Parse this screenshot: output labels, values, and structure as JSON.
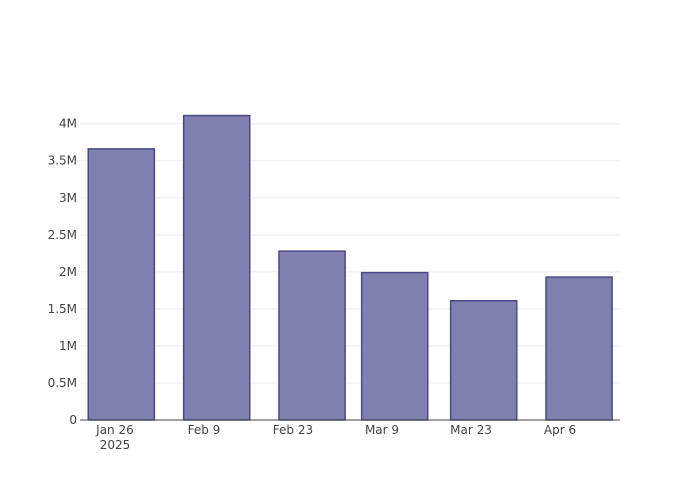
{
  "chart_data": {
    "type": "bar",
    "x": [
      "2025-01-27",
      "2025-02-11",
      "2025-02-26",
      "2025-03-11",
      "2025-03-25",
      "2025-04-09"
    ],
    "values": [
      3660000,
      4110000,
      2280000,
      1990000,
      1610000,
      1930000
    ],
    "color": "#7f7fb0",
    "line_color": "#4a4a88",
    "xlim": [
      "2025-01-20T12:00",
      "2025-04-15T10:30"
    ],
    "xticks": [
      {
        "value": "2025-01-26",
        "label": "Jan 26\n2025"
      },
      {
        "value": "2025-02-09",
        "label": "Feb 9"
      },
      {
        "value": "2025-02-23",
        "label": "Feb 23"
      },
      {
        "value": "2025-03-09",
        "label": "Mar 9"
      },
      {
        "value": "2025-03-23",
        "label": "Mar 23"
      },
      {
        "value": "2025-04-06",
        "label": "Apr 6"
      }
    ],
    "ylim": [
      0,
      4320000
    ],
    "yticks": [
      0,
      {
        "value": 500000,
        "label": "0.5M"
      },
      {
        "value": 1000000,
        "label": "1M"
      },
      {
        "value": 1500000,
        "label": "1.5M"
      },
      {
        "value": 2000000,
        "label": "2M"
      },
      {
        "value": 2500000,
        "label": "2.5M"
      },
      {
        "value": 3000000,
        "label": "3M"
      },
      {
        "value": 3500000,
        "label": "3.5M"
      },
      {
        "value": 4000000,
        "label": "4M"
      }
    ],
    "grid": true
  }
}
